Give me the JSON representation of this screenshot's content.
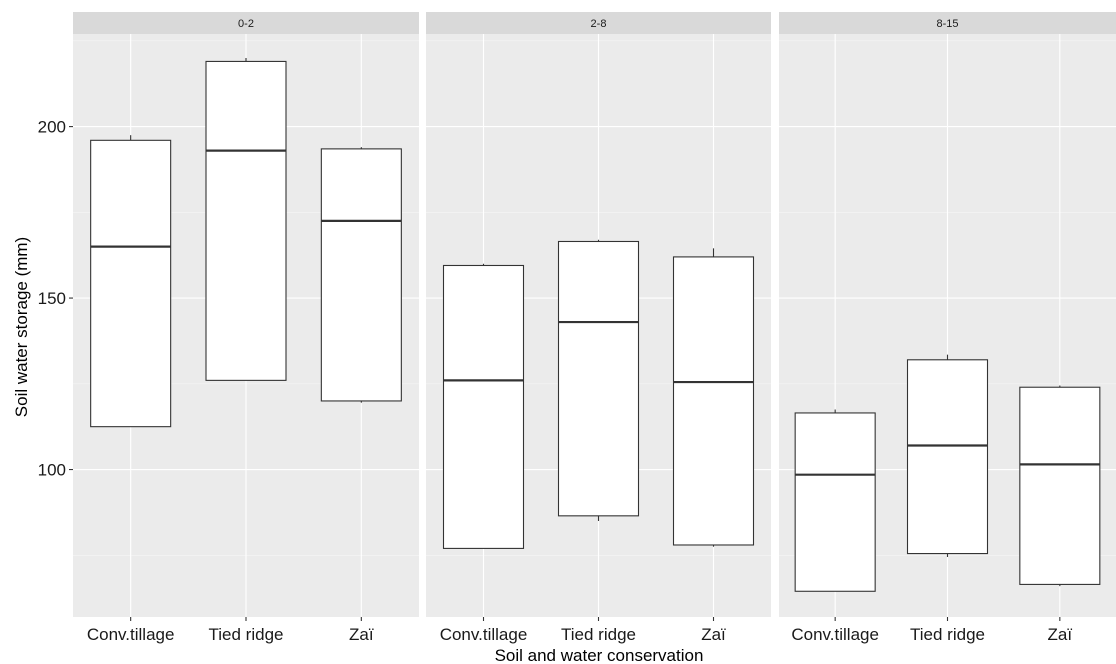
{
  "chart_data": {
    "type": "boxplot",
    "xlabel": "Soil and water conservation",
    "ylabel": "Soil water storage (mm)",
    "ylim": [
      57,
      227
    ],
    "y_ticks": [
      100,
      150,
      200
    ],
    "y_tick_labels": [
      "100",
      "150",
      "200"
    ],
    "categories": [
      "Conv.tillage",
      "Tied ridge",
      "Zaï"
    ],
    "facet_by": "slope class",
    "grid": true,
    "panels": [
      {
        "label": "0-2",
        "boxes": [
          {
            "category": "Conv.tillage",
            "min": 112.5,
            "q1": 112.5,
            "median": 165.0,
            "q3": 196.0,
            "max": 197.5
          },
          {
            "category": "Tied ridge",
            "min": 126.0,
            "q1": 126.0,
            "median": 193.0,
            "q3": 219.0,
            "max": 220.0
          },
          {
            "category": "Zaï",
            "min": 119.5,
            "q1": 120.0,
            "median": 172.5,
            "q3": 193.5,
            "max": 194.0
          }
        ]
      },
      {
        "label": "2-8",
        "boxes": [
          {
            "category": "Conv.tillage",
            "min": 77.0,
            "q1": 77.0,
            "median": 126.0,
            "q3": 159.5,
            "max": 160.0
          },
          {
            "category": "Tied ridge",
            "min": 85.0,
            "q1": 86.5,
            "median": 143.0,
            "q3": 166.5,
            "max": 167.0
          },
          {
            "category": "Zaï",
            "min": 77.5,
            "q1": 78.0,
            "median": 125.5,
            "q3": 162.0,
            "max": 164.5
          }
        ]
      },
      {
        "label": "8-15",
        "boxes": [
          {
            "category": "Conv.tillage",
            "min": 64.5,
            "q1": 64.5,
            "median": 98.5,
            "q3": 116.5,
            "max": 117.5
          },
          {
            "category": "Tied ridge",
            "min": 74.5,
            "q1": 75.5,
            "median": 107.0,
            "q3": 132.0,
            "max": 133.5
          },
          {
            "category": "Zaï",
            "min": 66.0,
            "q1": 66.5,
            "median": 101.5,
            "q3": 124.0,
            "max": 124.5
          }
        ]
      }
    ]
  }
}
